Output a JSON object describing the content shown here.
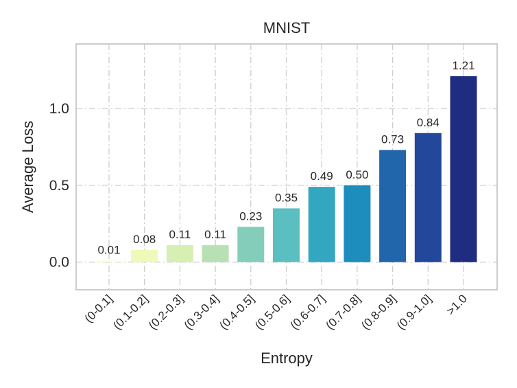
{
  "chart_data": {
    "type": "bar",
    "title": "MNIST",
    "xlabel": "Entropy",
    "ylabel": "Average Loss",
    "categories": [
      "(0-0.1]",
      "(0.1-0.2]",
      "(0.2-0.3]",
      "(0.3-0.4]",
      "(0.4-0.5]",
      "(0.5-0.6]",
      "(0.6-0.7]",
      "(0.7-0.8]",
      "(0.8-0.9]",
      "(0.9-1.0]",
      ">1.0"
    ],
    "values": [
      0.01,
      0.08,
      0.11,
      0.11,
      0.23,
      0.35,
      0.49,
      0.5,
      0.73,
      0.84,
      1.21
    ],
    "data_labels": [
      "0.01",
      "0.08",
      "0.11",
      "0.11",
      "0.23",
      "0.35",
      "0.49",
      "0.50",
      "0.73",
      "0.84",
      "1.21"
    ],
    "colors": [
      "#ffffd9",
      "#f0f9b9",
      "#d6efb3",
      "#b7e1b5",
      "#85cdbb",
      "#5bbfc1",
      "#33a7c2",
      "#1d8dbe",
      "#2165ab",
      "#23489b",
      "#1f2c7f"
    ],
    "ylim": [
      -0.18,
      1.42
    ],
    "yticks": [
      0.0,
      0.5,
      1.0
    ],
    "ytick_labels": [
      "0.0",
      "0.5",
      "1.0"
    ],
    "grid": true,
    "legend": "none"
  }
}
